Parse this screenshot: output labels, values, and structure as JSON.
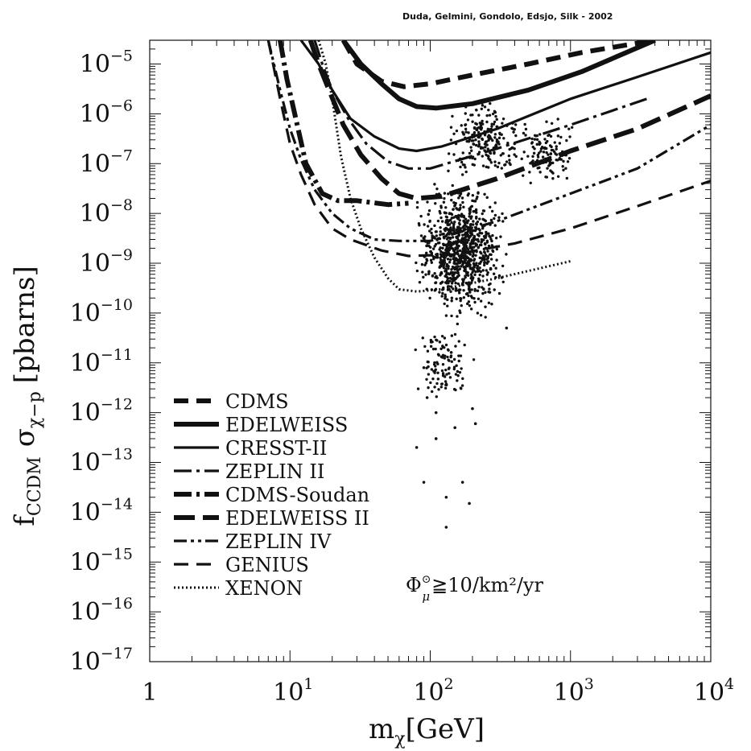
{
  "chart_data": {
    "type": "scatter",
    "credit": "Duda, Gelmini, Gondolo, Edsjo, Silk - 2002",
    "xlabel": "m",
    "xlabel_sub": "χ",
    "xlabel_unit": "[GeV]",
    "ylabel_f": "f",
    "ylabel_f_sub": "CCDM",
    "ylabel_sigma": "σ",
    "ylabel_sigma_sub": "χ−p",
    "ylabel_unit": "[pbarns]",
    "x_scale": "log",
    "y_scale": "log",
    "xlim": [
      1,
      10000
    ],
    "ylim": [
      1e-17,
      3e-05
    ],
    "x_ticks": [
      {
        "value": 1,
        "base": "1",
        "exp": ""
      },
      {
        "value": 10,
        "base": "10",
        "exp": "1"
      },
      {
        "value": 100,
        "base": "10",
        "exp": "2"
      },
      {
        "value": 1000,
        "base": "10",
        "exp": "3"
      },
      {
        "value": 10000,
        "base": "10",
        "exp": "4"
      }
    ],
    "y_ticks": [
      {
        "value": 1e-05,
        "base": "10",
        "exp": "−5"
      },
      {
        "value": 1e-06,
        "base": "10",
        "exp": "−6"
      },
      {
        "value": 1e-07,
        "base": "10",
        "exp": "−7"
      },
      {
        "value": 1e-08,
        "base": "10",
        "exp": "−8"
      },
      {
        "value": 1e-09,
        "base": "10",
        "exp": "−9"
      },
      {
        "value": 1e-10,
        "base": "10",
        "exp": "−10"
      },
      {
        "value": 1e-11,
        "base": "10",
        "exp": "−11"
      },
      {
        "value": 1e-12,
        "base": "10",
        "exp": "−12"
      },
      {
        "value": 1e-13,
        "base": "10",
        "exp": "−13"
      },
      {
        "value": 1e-14,
        "base": "10",
        "exp": "−14"
      },
      {
        "value": 1e-15,
        "base": "10",
        "exp": "−15"
      },
      {
        "value": 1e-16,
        "base": "10",
        "exp": "−16"
      },
      {
        "value": 1e-17,
        "base": "10",
        "exp": "−17"
      }
    ],
    "grid": false,
    "legend_position": "bottom-left",
    "annotation": {
      "phi": "Φ",
      "phi_sup": "⊙",
      "phi_sub": "μ",
      "rest": "≧10/km²/yr"
    },
    "series": [
      {
        "name": "CDMS",
        "style": "dashed",
        "weight": "heavy",
        "points": [
          [
            24,
            3e-05
          ],
          [
            30,
            1e-05
          ],
          [
            45,
            4.5e-06
          ],
          [
            65,
            3.5e-06
          ],
          [
            100,
            4e-06
          ],
          [
            200,
            6e-06
          ],
          [
            500,
            1e-05
          ],
          [
            1200,
            1.7e-05
          ],
          [
            4000,
            3e-05
          ]
        ]
      },
      {
        "name": "EDELWEISS",
        "style": "solid",
        "weight": "heavy",
        "points": [
          [
            24,
            3e-05
          ],
          [
            32,
            1e-05
          ],
          [
            45,
            4e-06
          ],
          [
            60,
            2e-06
          ],
          [
            80,
            1.4e-06
          ],
          [
            110,
            1.3e-06
          ],
          [
            200,
            1.6e-06
          ],
          [
            500,
            3e-06
          ],
          [
            1200,
            7e-06
          ],
          [
            4000,
            3e-05
          ]
        ]
      },
      {
        "name": "CRESST-II",
        "style": "solid",
        "weight": "medium",
        "points": [
          [
            12,
            3e-05
          ],
          [
            16,
            1e-05
          ],
          [
            20,
            3e-06
          ],
          [
            27,
            8e-07
          ],
          [
            40,
            3.5e-07
          ],
          [
            60,
            2e-07
          ],
          [
            80,
            1.8e-07
          ],
          [
            120,
            2.2e-07
          ],
          [
            300,
            5e-07
          ],
          [
            1000,
            2e-06
          ],
          [
            3000,
            5.5e-06
          ],
          [
            10000,
            1.7e-05
          ]
        ]
      },
      {
        "name": "ZEPLIN II",
        "style": "dashdot",
        "weight": "medium",
        "points": [
          [
            15,
            3e-05
          ],
          [
            17,
            1e-05
          ],
          [
            20,
            3e-06
          ],
          [
            26,
            8e-07
          ],
          [
            35,
            2.5e-07
          ],
          [
            50,
            1.1e-07
          ],
          [
            70,
            8e-08
          ],
          [
            100,
            8e-08
          ],
          [
            300,
            2e-07
          ],
          [
            1000,
            6e-07
          ],
          [
            3500,
            2e-06
          ]
        ]
      },
      {
        "name": "CDMS-Soudan",
        "style": "dashdot",
        "weight": "heavy",
        "points": [
          [
            8.5,
            3e-05
          ],
          [
            9.5,
            5e-06
          ],
          [
            11,
            8e-07
          ],
          [
            13,
            1e-07
          ],
          [
            17,
            2.5e-08
          ],
          [
            22,
            1.8e-08
          ],
          [
            30,
            1.8e-08
          ],
          [
            50,
            1.5e-08
          ],
          [
            70,
            1.6e-08
          ]
        ]
      },
      {
        "name": "EDELWEISS II",
        "style": "longdash",
        "weight": "heavy",
        "points": [
          [
            14,
            3e-05
          ],
          [
            16,
            1e-05
          ],
          [
            19,
            3e-06
          ],
          [
            24,
            6e-07
          ],
          [
            32,
            1.5e-07
          ],
          [
            45,
            5e-08
          ],
          [
            60,
            2.5e-08
          ],
          [
            80,
            2e-08
          ],
          [
            120,
            2.2e-08
          ],
          [
            300,
            5e-08
          ],
          [
            1000,
            1.8e-07
          ],
          [
            3000,
            5e-07
          ],
          [
            10000,
            2.3e-06
          ]
        ]
      },
      {
        "name": "ZEPLIN IV",
        "style": "dashdotdot",
        "weight": "medium",
        "points": [
          [
            7,
            3e-05
          ],
          [
            8.5,
            3e-06
          ],
          [
            10,
            5e-07
          ],
          [
            12,
            1.2e-07
          ],
          [
            15,
            3e-08
          ],
          [
            20,
            1e-08
          ],
          [
            27,
            5e-09
          ],
          [
            40,
            3e-09
          ],
          [
            60,
            2.8e-09
          ],
          [
            100,
            2.8e-09
          ],
          [
            300,
            7e-09
          ],
          [
            1000,
            2.5e-08
          ],
          [
            3000,
            8e-08
          ],
          [
            10000,
            6e-07
          ]
        ]
      },
      {
        "name": "GENIUS",
        "style": "dashed",
        "weight": "medium",
        "points": [
          [
            7,
            3e-05
          ],
          [
            8.5,
            2e-06
          ],
          [
            10,
            2.5e-07
          ],
          [
            12,
            6e-08
          ],
          [
            15,
            1.5e-08
          ],
          [
            20,
            5e-09
          ],
          [
            27,
            3e-09
          ],
          [
            45,
            1.8e-09
          ],
          [
            70,
            1.4e-09
          ],
          [
            150,
            1.5e-09
          ],
          [
            400,
            2.5e-09
          ],
          [
            1000,
            5e-09
          ],
          [
            3000,
            1.4e-08
          ],
          [
            10000,
            4.5e-08
          ]
        ]
      },
      {
        "name": "XENON",
        "style": "dotted",
        "weight": "medium",
        "points": [
          [
            16,
            3e-05
          ],
          [
            18,
            1e-05
          ],
          [
            20,
            2e-06
          ],
          [
            23,
            1.5e-07
          ],
          [
            27,
            2e-08
          ],
          [
            32,
            5e-09
          ],
          [
            40,
            1.3e-09
          ],
          [
            50,
            5e-10
          ],
          [
            60,
            3e-10
          ],
          [
            80,
            2.7e-10
          ],
          [
            120,
            3e-10
          ],
          [
            300,
            5e-10
          ],
          [
            1000,
            1.1e-09
          ]
        ]
      }
    ],
    "scatter_regions": [
      {
        "label": "main",
        "logx": [
          1.85,
          2.58
        ],
        "logy": [
          -10.3,
          -7.2
        ],
        "count": 900
      },
      {
        "label": "upper",
        "logx": [
          2.05,
          2.75
        ],
        "logy": [
          -7.4,
          -5.6
        ],
        "count": 220
      },
      {
        "label": "tail",
        "logx": [
          1.85,
          2.35
        ],
        "logy": [
          -12,
          -10
        ],
        "count": 110
      },
      {
        "label": "right",
        "logx": [
          2.6,
          3.05
        ],
        "logy": [
          -7.6,
          -6.0
        ],
        "count": 110
      }
    ],
    "scatter_sparse_points": [
      [
        80,
        2e-13
      ],
      [
        90,
        4e-14
      ],
      [
        110,
        3e-13
      ],
      [
        130,
        2e-14
      ],
      [
        150,
        5e-13
      ],
      [
        170,
        4e-14
      ],
      [
        190,
        1.5e-14
      ],
      [
        210,
        6e-13
      ],
      [
        130,
        5e-15
      ],
      [
        110,
        1e-12
      ],
      [
        95,
        2e-12
      ],
      [
        200,
        1.2e-12
      ],
      [
        90,
        8e-12
      ],
      [
        350,
        5e-11
      ]
    ]
  }
}
